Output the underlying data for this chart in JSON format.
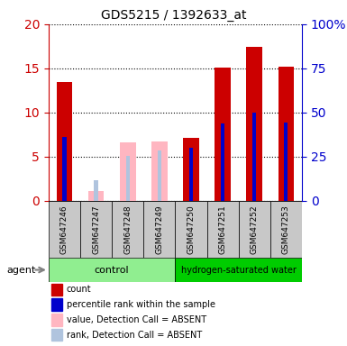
{
  "title": "GDS5215 / 1392633_at",
  "samples": [
    "GSM647246",
    "GSM647247",
    "GSM647248",
    "GSM647249",
    "GSM647250",
    "GSM647251",
    "GSM647252",
    "GSM647253"
  ],
  "count_values": [
    13.5,
    null,
    null,
    null,
    7.1,
    15.1,
    17.4,
    15.2
  ],
  "percentile_values": [
    36.0,
    null,
    null,
    null,
    30.0,
    44.0,
    50.0,
    44.5
  ],
  "absent_value_values": [
    null,
    1.1,
    6.6,
    6.7,
    null,
    null,
    null,
    null
  ],
  "absent_rank_values": [
    null,
    11.5,
    25.5,
    28.5,
    null,
    null,
    null,
    null
  ],
  "count_color": "#CC0000",
  "percentile_color": "#0000CC",
  "absent_value_color": "#FFB6C1",
  "absent_rank_color": "#B0C4DE",
  "ylim_left": [
    0,
    20
  ],
  "ylim_right": [
    0,
    100
  ],
  "yticks_left": [
    0,
    5,
    10,
    15,
    20
  ],
  "yticks_right": [
    0,
    25,
    50,
    75,
    100
  ],
  "yticklabels_right": [
    "0",
    "25",
    "50",
    "75",
    "100%"
  ],
  "background_color": "#FFFFFF",
  "control_color": "#90EE90",
  "treatment_color": "#00CC00",
  "sample_box_color": "#C8C8C8",
  "legend_items": [
    {
      "color": "#CC0000",
      "label": "count"
    },
    {
      "color": "#0000CC",
      "label": "percentile rank within the sample"
    },
    {
      "color": "#FFB6C1",
      "label": "value, Detection Call = ABSENT"
    },
    {
      "color": "#B0C4DE",
      "label": "rank, Detection Call = ABSENT"
    }
  ]
}
